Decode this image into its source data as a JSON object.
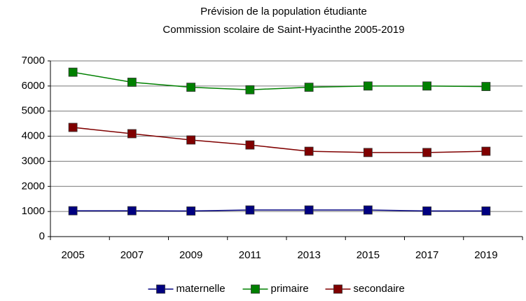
{
  "chart_data": {
    "type": "line",
    "title": "Prévision de la population étudiante",
    "subtitle": "Commission scolaire de Saint-Hyacinthe 2005-2019",
    "categories": [
      "2005",
      "2007",
      "2009",
      "2011",
      "2013",
      "2015",
      "2017",
      "2019"
    ],
    "series": [
      {
        "name": "maternelle",
        "color": "#000080",
        "values": [
          1030,
          1030,
          1020,
          1060,
          1060,
          1060,
          1020,
          1020
        ]
      },
      {
        "name": "primaire",
        "color": "#008000",
        "values": [
          6550,
          6150,
          5950,
          5850,
          5950,
          6000,
          6000,
          5980
        ]
      },
      {
        "name": "secondaire",
        "color": "#800000",
        "values": [
          4350,
          4100,
          3850,
          3650,
          3400,
          3350,
          3350,
          3400
        ]
      }
    ],
    "ylim": [
      0,
      7000
    ],
    "yticks": [
      0,
      1000,
      2000,
      3000,
      4000,
      5000,
      6000,
      7000
    ],
    "grid": true,
    "legend": "bottom"
  }
}
